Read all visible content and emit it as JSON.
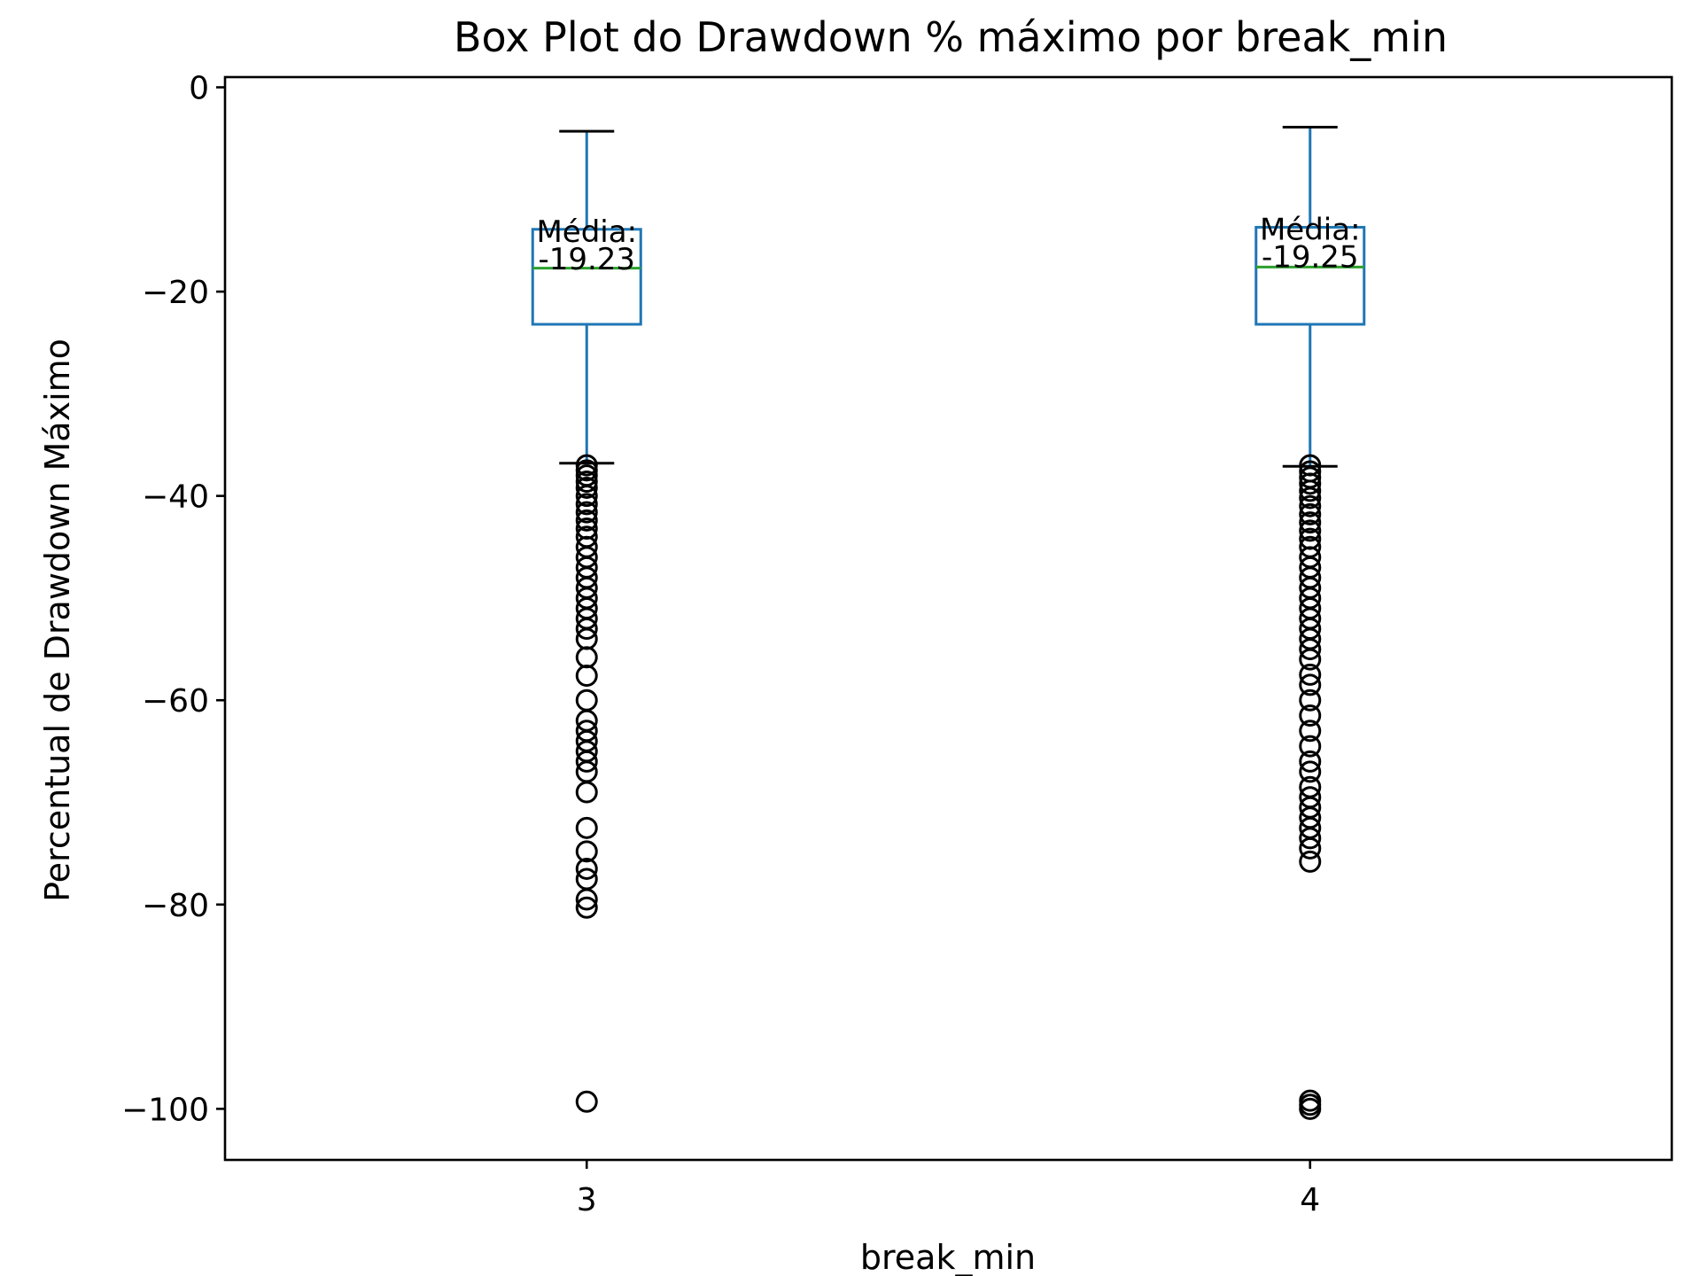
{
  "chart_data": {
    "type": "box",
    "title": "Box Plot do Drawdown % máximo por break_min",
    "xlabel": "break_min",
    "ylabel": "Percentual de Drawdown Máximo",
    "categories": [
      "3",
      "4"
    ],
    "ylim": [
      -105,
      1
    ],
    "yticks": [
      0,
      -20,
      -40,
      -60,
      -80,
      -100
    ],
    "ytick_labels": [
      "0",
      "−20",
      "−40",
      "−60",
      "−80",
      "−100"
    ],
    "grid": false,
    "colors": {
      "box": "#1f77b4",
      "whisker": "#1f77b4",
      "median": "#2ca02c",
      "flier": "#000000",
      "axes": "#000000"
    },
    "series": [
      {
        "category": "3",
        "whisker_high": -4.3,
        "q3": -13.9,
        "median": -17.7,
        "q1": -23.2,
        "whisker_low": -36.8,
        "mean_label": "Média:",
        "mean_value": "-19.23",
        "fliers": [
          -37,
          -37.5,
          -38,
          -38.6,
          -39.2,
          -40,
          -40.8,
          -41.6,
          -42.4,
          -43.2,
          -44,
          -45,
          -46,
          -47,
          -48,
          -49,
          -50,
          -51,
          -52,
          -53,
          -54,
          -55.8,
          -57.6,
          -60,
          -62,
          -63,
          -64,
          -65,
          -66,
          -67,
          -69,
          -72.5,
          -74.8,
          -76.5,
          -77.5,
          -79.5,
          -80.3,
          -99.3
        ]
      },
      {
        "category": "4",
        "whisker_high": -3.9,
        "q3": -13.7,
        "median": -17.6,
        "q1": -23.2,
        "whisker_low": -37.1,
        "mean_label": "Média:",
        "mean_value": "-19.25",
        "fliers": [
          -37,
          -37.6,
          -38.2,
          -38.8,
          -39.5,
          -40.2,
          -41,
          -41.8,
          -42.6,
          -43.4,
          -44.2,
          -45,
          -46,
          -47,
          -48,
          -49,
          -50,
          -51,
          -52,
          -53,
          -54,
          -55,
          -56,
          -57.5,
          -58.5,
          -60,
          -61.5,
          -63,
          -64.5,
          -66,
          -67,
          -68.5,
          -69.5,
          -70.5,
          -71.5,
          -72.5,
          -73.5,
          -74.5,
          -75.8,
          -99.2,
          -99.6,
          -100
        ]
      }
    ]
  }
}
